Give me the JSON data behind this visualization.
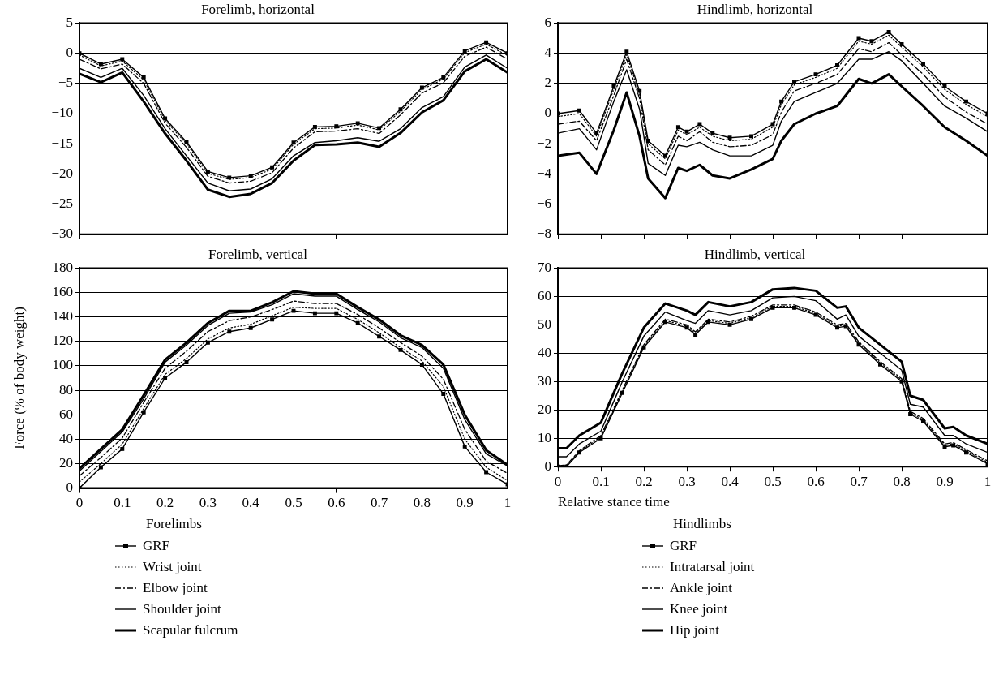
{
  "chart_data": [
    {
      "type": "line",
      "title": "Forelimb, horizontal",
      "x": [
        0,
        0.05,
        0.1,
        0.15,
        0.2,
        0.25,
        0.3,
        0.35,
        0.4,
        0.45,
        0.5,
        0.55,
        0.6,
        0.65,
        0.7,
        0.75,
        0.8,
        0.85,
        0.9,
        0.95,
        1
      ],
      "series": [
        {
          "color": "#000000",
          "marker": "square",
          "line_style": "solid",
          "values": [
            0,
            -1.8,
            -1.0,
            -4.0,
            -10.8,
            -14.7,
            -19.6,
            -20.6,
            -20.3,
            -18.9,
            -14.8,
            -12.2,
            -12.1,
            -11.6,
            -12.4,
            -9.3,
            -5.7,
            -4.0,
            0.4,
            1.8,
            0
          ]
        },
        {
          "color": "#000000",
          "marker": "none",
          "line_style": "dotted",
          "values": [
            -0.3,
            -2.1,
            -1.3,
            -4.4,
            -11.1,
            -15.0,
            -19.9,
            -20.9,
            -20.6,
            -19.2,
            -15.1,
            -12.5,
            -12.4,
            -11.9,
            -12.7,
            -9.6,
            -6.0,
            -4.3,
            0.1,
            1.5,
            -0.4
          ]
        },
        {
          "color": "#000000",
          "marker": "none",
          "line_style": "dashed",
          "values": [
            -1.0,
            -2.6,
            -1.8,
            -5.0,
            -11.6,
            -15.6,
            -20.4,
            -21.5,
            -21.2,
            -19.8,
            -15.7,
            -13.0,
            -12.9,
            -12.5,
            -13.3,
            -10.2,
            -6.6,
            -4.9,
            -0.5,
            1.0,
            -1.0
          ]
        },
        {
          "color": "#000000",
          "marker": "none",
          "line_style": "solid",
          "values": [
            -2.5,
            -4.0,
            -2.5,
            -7.0,
            -12.5,
            -17.0,
            -21.5,
            -22.8,
            -22.5,
            -20.8,
            -17.0,
            -14.8,
            -14.5,
            -14.0,
            -14.6,
            -12.5,
            -9.0,
            -7.2,
            -2.3,
            -0.3,
            -2.5
          ]
        },
        {
          "color": "#000000",
          "marker": "none",
          "line_style": "solid",
          "values": [
            -3.4,
            -4.8,
            -3.2,
            -8.0,
            -13.3,
            -17.8,
            -22.6,
            -23.8,
            -23.3,
            -21.5,
            -17.8,
            -15.2,
            -15.1,
            -14.8,
            -15.5,
            -13.2,
            -9.8,
            -7.8,
            -3.0,
            -1.0,
            -3.2
          ]
        }
      ],
      "xlim": [
        0,
        1
      ],
      "xticks": [
        0,
        0.1,
        0.2,
        0.3,
        0.4,
        0.5,
        0.6,
        0.7,
        0.8,
        0.9,
        1
      ],
      "ylim": [
        -30,
        5
      ],
      "yticks": [
        -30,
        -25,
        -20,
        -15,
        -10,
        -5,
        0,
        5
      ],
      "grid": "y",
      "tick_labels": "y"
    },
    {
      "type": "line",
      "title": "Hindlimb, horizontal",
      "x": [
        0,
        0.05,
        0.09,
        0.13,
        0.16,
        0.19,
        0.21,
        0.25,
        0.28,
        0.3,
        0.33,
        0.36,
        0.4,
        0.45,
        0.5,
        0.52,
        0.55,
        0.6,
        0.65,
        0.7,
        0.73,
        0.77,
        0.8,
        0.85,
        0.9,
        0.95,
        1
      ],
      "series": [
        {
          "color": "#000000",
          "marker": "square",
          "line_style": "solid",
          "values": [
            0,
            0.2,
            -1.3,
            1.8,
            4.1,
            1.5,
            -1.8,
            -2.8,
            -0.9,
            -1.2,
            -0.7,
            -1.3,
            -1.6,
            -1.5,
            -0.7,
            0.8,
            2.1,
            2.6,
            3.2,
            5.0,
            4.8,
            5.4,
            4.6,
            3.3,
            1.8,
            0.8,
            0
          ]
        },
        {
          "color": "#000000",
          "marker": "none",
          "line_style": "dotted",
          "values": [
            -0.2,
            0,
            -1.5,
            1.6,
            3.9,
            1.3,
            -2.0,
            -3.0,
            -1.1,
            -1.4,
            -0.9,
            -1.5,
            -1.8,
            -1.7,
            -0.9,
            0.6,
            1.9,
            2.4,
            3.0,
            4.8,
            4.6,
            5.2,
            4.4,
            3.1,
            1.6,
            0.6,
            -0.2
          ]
        },
        {
          "color": "#000000",
          "marker": "none",
          "line_style": "dashed",
          "values": [
            -0.7,
            -0.5,
            -1.8,
            1.2,
            3.6,
            1.0,
            -2.4,
            -3.4,
            -1.5,
            -1.8,
            -1.2,
            -1.9,
            -2.2,
            -2.1,
            -1.4,
            0.1,
            1.5,
            2.0,
            2.6,
            4.3,
            4.1,
            4.7,
            3.9,
            2.6,
            1.1,
            0.1,
            -0.7
          ]
        },
        {
          "color": "#000000",
          "marker": "none",
          "line_style": "solid",
          "values": [
            -1.3,
            -1.0,
            -2.4,
            0.8,
            2.9,
            0.3,
            -3.3,
            -4.1,
            -2.1,
            -2.2,
            -1.9,
            -2.4,
            -2.8,
            -2.8,
            -2.1,
            -0.5,
            0.8,
            1.4,
            2.0,
            3.6,
            3.6,
            4.1,
            3.5,
            2.0,
            0.5,
            -0.3,
            -1.2
          ]
        },
        {
          "color": "#000000",
          "marker": "none",
          "line_style": "solid",
          "values": [
            -2.8,
            -2.6,
            -4.0,
            -1.1,
            1.4,
            -1.5,
            -4.3,
            -5.6,
            -3.6,
            -3.8,
            -3.4,
            -4.1,
            -4.3,
            -3.7,
            -3.0,
            -1.8,
            -0.7,
            0,
            0.5,
            2.3,
            2.0,
            2.6,
            1.8,
            0.5,
            -0.9,
            -1.8,
            -2.8
          ]
        }
      ],
      "xlim": [
        0,
        1
      ],
      "xticks": [
        0,
        0.1,
        0.2,
        0.3,
        0.4,
        0.5,
        0.6,
        0.7,
        0.8,
        0.9,
        1
      ],
      "ylim": [
        -8,
        6
      ],
      "yticks": [
        -8,
        -6,
        -4,
        -2,
        0,
        2,
        4,
        6
      ],
      "grid": "y",
      "tick_labels": "y"
    },
    {
      "type": "line",
      "title": "Forelimb, vertical",
      "ylabel": "Force (% of body weight)",
      "legend_title": "Forelimbs",
      "legend": "bottom",
      "x": [
        0,
        0.05,
        0.1,
        0.15,
        0.2,
        0.25,
        0.3,
        0.35,
        0.4,
        0.45,
        0.5,
        0.55,
        0.6,
        0.65,
        0.7,
        0.75,
        0.8,
        0.85,
        0.9,
        0.95,
        1
      ],
      "series": [
        {
          "name": "GRF",
          "color": "#000000",
          "marker": "square",
          "line_style": "solid",
          "values": [
            0,
            17,
            32,
            62,
            90,
            103,
            119,
            128,
            131,
            138,
            145,
            143,
            143,
            135,
            124,
            113,
            101,
            77,
            34,
            13,
            3
          ]
        },
        {
          "name": "Wrist joint",
          "color": "#000000",
          "marker": "none",
          "line_style": "dotted",
          "values": [
            5,
            20,
            36,
            65,
            93,
            106,
            122,
            131,
            134,
            141,
            148,
            147,
            147,
            138,
            127,
            115,
            104,
            83,
            40,
            17,
            6
          ]
        },
        {
          "name": "Elbow joint",
          "color": "#000000",
          "marker": "none",
          "line_style": "dashed",
          "values": [
            10,
            25,
            41,
            70,
            98,
            112,
            128,
            137,
            140,
            146,
            153,
            151,
            151,
            142,
            131,
            119,
            108,
            89,
            48,
            22,
            12
          ]
        },
        {
          "name": "Shoulder joint",
          "color": "#000000",
          "marker": "none",
          "line_style": "solid",
          "values": [
            14,
            30,
            46,
            73,
            103,
            117,
            133,
            143,
            144,
            150,
            159,
            157,
            157,
            146,
            136,
            123,
            115,
            98,
            56,
            28,
            18
          ]
        },
        {
          "name": "Scapular fulcrum",
          "color": "#000000",
          "marker": "none",
          "line_style": "solid",
          "values": [
            16,
            32,
            48,
            76,
            105,
            119,
            135,
            145,
            145,
            152,
            161,
            159,
            159,
            148,
            138,
            125,
            117,
            101,
            60,
            31,
            19
          ]
        }
      ],
      "xlim": [
        0,
        1
      ],
      "xticks": [
        0,
        0.1,
        0.2,
        0.3,
        0.4,
        0.5,
        0.6,
        0.7,
        0.8,
        0.9,
        1
      ],
      "ylim": [
        0,
        180
      ],
      "yticks": [
        0,
        20,
        40,
        60,
        80,
        100,
        120,
        140,
        160,
        180
      ],
      "grid": "y"
    },
    {
      "type": "line",
      "title": "Hindlimb, vertical",
      "xlabel": "Relative stance time",
      "legend_title": "Hindlimbs",
      "legend": "bottom",
      "x": [
        0,
        0.02,
        0.05,
        0.1,
        0.15,
        0.2,
        0.25,
        0.3,
        0.32,
        0.35,
        0.4,
        0.45,
        0.5,
        0.55,
        0.6,
        0.65,
        0.67,
        0.7,
        0.75,
        0.8,
        0.82,
        0.85,
        0.9,
        0.92,
        0.95,
        1
      ],
      "series": [
        {
          "name": "GRF",
          "color": "#000000",
          "marker": "square",
          "line_style": "solid",
          "values": [
            0,
            0,
            5,
            10,
            26,
            42,
            51,
            49,
            46.5,
            51,
            50,
            52,
            56,
            56,
            53.5,
            49,
            49.5,
            43,
            36,
            30,
            18.5,
            16,
            7,
            7.5,
            5,
            1
          ]
        },
        {
          "name": "Intratarsal joint",
          "color": "#000000",
          "marker": "none",
          "line_style": "dotted",
          "values": [
            0,
            0.3,
            5.3,
            10.5,
            26.5,
            42.5,
            51.5,
            49.5,
            47,
            51.5,
            50.5,
            52.5,
            56.5,
            56.5,
            54,
            49.5,
            50,
            43.5,
            36.5,
            30.5,
            19,
            16.5,
            7.5,
            8,
            5.5,
            1.5
          ]
        },
        {
          "name": "Ankle joint",
          "color": "#000000",
          "marker": "none",
          "line_style": "dashed",
          "values": [
            0.3,
            0.6,
            5.6,
            11,
            27,
            43,
            52,
            50,
            47.5,
            52,
            51,
            53,
            57,
            57,
            54.5,
            50,
            50.5,
            44,
            37,
            31,
            19.5,
            17,
            8,
            8.5,
            6,
            2
          ]
        },
        {
          "name": "Knee joint",
          "color": "#000000",
          "marker": "none",
          "line_style": "solid",
          "values": [
            3.5,
            3.5,
            8,
            12.5,
            30,
            46,
            54.5,
            51.5,
            50.5,
            55,
            53.5,
            55,
            59.5,
            60,
            58.5,
            52,
            53.5,
            46,
            40,
            34,
            22,
            21,
            11,
            11,
            8,
            5
          ]
        },
        {
          "name": "Hip joint",
          "color": "#000000",
          "marker": "none",
          "line_style": "solid",
          "values": [
            6.5,
            6.5,
            11,
            15.5,
            33,
            49,
            57.5,
            55,
            53.5,
            58,
            56.5,
            58,
            62.5,
            63,
            62,
            56,
            56.5,
            49,
            43,
            37,
            25,
            23.5,
            13.5,
            14,
            11,
            8
          ]
        }
      ],
      "xlim": [
        0,
        1
      ],
      "xticks": [
        0,
        0.1,
        0.2,
        0.3,
        0.4,
        0.5,
        0.6,
        0.7,
        0.8,
        0.9,
        1
      ],
      "ylim": [
        0,
        70
      ],
      "yticks": [
        0,
        10,
        20,
        30,
        40,
        50,
        60,
        70
      ],
      "grid": "y"
    }
  ]
}
